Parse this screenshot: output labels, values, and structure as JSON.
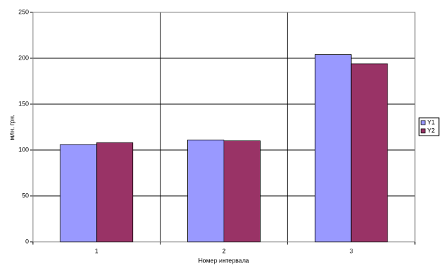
{
  "chart_data": {
    "type": "bar",
    "y_label": "млн. грн.",
    "x_label": "Номер интервала",
    "categories": [
      "1",
      "2",
      "3"
    ],
    "series": [
      {
        "name": "Y1",
        "color": "#9999ff",
        "values": [
          106,
          111,
          204
        ]
      },
      {
        "name": "Y2",
        "color": "#993366",
        "values": [
          108,
          110,
          194
        ]
      }
    ],
    "ylim": [
      0,
      250
    ],
    "yticks": [
      0,
      50,
      100,
      150,
      200,
      250
    ],
    "grid": true,
    "legend": "right"
  }
}
